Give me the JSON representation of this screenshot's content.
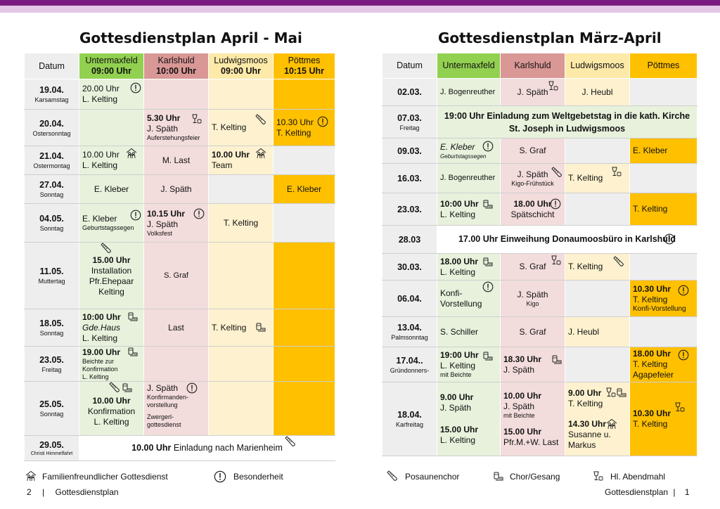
{
  "left": {
    "title": "Gottesdienstplan April - Mai",
    "headers": {
      "datum": "Datum",
      "c1": "Untermaxfeld",
      "c1t": "09:00 Uhr",
      "c2": "Karlshuld",
      "c2t": "10:00 Uhr",
      "c3": "Ludwigsmoos",
      "c3t": "09:00 Uhr",
      "c4": "Pöttmes",
      "c4t": "10:15 Uhr"
    },
    "rows": [
      {
        "date": "19.04.",
        "day": "Karsamstag",
        "c1a": "20.00 Uhr",
        "c1b": "L. Kelting"
      },
      {
        "date": "20.04.",
        "day": "Ostersonntag",
        "c2a": "5.30 Uhr",
        "c2b": "J. Späth",
        "c2c": "Auferstehungsfeier",
        "c3a": "T. Kelting",
        "c4a": "10.30 Uhr",
        "c4b": "T. Kelting"
      },
      {
        "date": "21.04.",
        "day": "Ostermontag",
        "c1a": "10.00 Uhr",
        "c1b": "L. Kelting",
        "c2a": "M. Last",
        "c3a": "10.00 Uhr",
        "c3b": "Team"
      },
      {
        "date": "27.04.",
        "day": "Sonntag",
        "c1a": "E. Kleber",
        "c2a": "J. Späth",
        "c4a": "E. Kleber"
      },
      {
        "date": "04.05.",
        "day": "Sonntag",
        "c1a": "E. Kleber",
        "c1b": "Geburtstagssegen",
        "c2a": "10.15 Uhr",
        "c2b": "J. Späth",
        "c2c": "Volksfest",
        "c3a": "T. Kelting"
      },
      {
        "date": "11.05.",
        "day": "Muttertag",
        "c1a": "15.00 Uhr",
        "c1b": "Installation",
        "c1c": "Pfr.Ehepaar",
        "c1d": "Kelting",
        "c2a": "S. Graf"
      },
      {
        "date": "18.05.",
        "day": "Sonntag",
        "c1a": "10:00 Uhr",
        "c1b": "Gde.Haus",
        "c1c": "L. Kelting",
        "c2a": "Last",
        "c3a": "T. Kelting"
      },
      {
        "date": "23.05.",
        "day": "Freitag",
        "c1a": "19.00 Uhr",
        "c1b": "Beichte zur",
        "c1c": "Konfirmation",
        "c1d": "L. Kelting"
      },
      {
        "date": "25.05.",
        "day": "Sonntag",
        "c1a": "10.00 Uhr",
        "c1b": "Konfirmation",
        "c1c": "L. Kelting",
        "c2a": "J. Späth",
        "c2b": "Konfirmanden-",
        "c2c": "vorstellung",
        "c2d": "Zwergerl-",
        "c2e": "gottesdienst"
      },
      {
        "date": "29.05.",
        "day": "Christi Himmelfahrt",
        "span_b": "10.00 Uhr",
        "span_t": " Einladung nach Marienheim"
      }
    ]
  },
  "right": {
    "title": "Gottesdienstplan März-April",
    "headers": {
      "datum": "Datum",
      "c1": "Untermaxfeld",
      "c2": "Karlshuld",
      "c3": "Ludwigsmoos",
      "c4": "Pöttmes"
    },
    "rows": [
      {
        "date": "02.03.",
        "c1a": "J. Bogenreuther",
        "c2a": "J. Späth",
        "c3a": "J. Heubl"
      },
      {
        "date": "07.03.",
        "day": "Freitag",
        "span1": "19:00 Uhr Einladung zum Weltgebetstag in die kath. Kirche",
        "span2": "St. Joseph in Ludwigsmoos"
      },
      {
        "date": "09.03.",
        "c1a": "E. Kleber",
        "c1b": "Geburtstagssegen",
        "c2a": "S. Graf",
        "c4a": "E. Kleber"
      },
      {
        "date": "16.03.",
        "c1a": "J. Bogenreuther",
        "c2a": "J. Späth",
        "c2b": "Kigo-Frühstück",
        "c3a": "T. Kelting"
      },
      {
        "date": "23.03.",
        "c1a": "10:00 Uhr",
        "c1b": "L. Kelting",
        "c2a": "18.00 Uhr",
        "c2b": "Spätschicht",
        "c4a": "T. Kelting"
      },
      {
        "date": "28.03",
        "span": "17.00 Uhr Einweihung Donaumoosbüro in Karlshuld"
      },
      {
        "date": "30.03.",
        "c1a": "18.00 Uhr",
        "c1b": "L. Kelting",
        "c2a": "S. Graf",
        "c3a": "T. Kelting"
      },
      {
        "date": "06.04.",
        "c1a": "Konfi-",
        "c1b": "Vorstellung",
        "c2a": "J. Späth",
        "c2b": "Kigo",
        "c4a": "10.30 Uhr",
        "c4b": "T. Kelting",
        "c4c": "Konfi-Vorstellung"
      },
      {
        "date": "13.04.",
        "day": "Palmsonntag",
        "c1a": "S. Schiller",
        "c2a": "S. Graf",
        "c3a": "J. Heubl"
      },
      {
        "date": "17.04..",
        "day": "Gründonners-",
        "c1a": "19:00 Uhr",
        "c1b": "L. Kelting",
        "c1c": "mit Beichte",
        "c2a": "18.30 Uhr",
        "c2b": "J. Späth",
        "c4a": "18.00 Uhr",
        "c4b": "T. Kelting",
        "c4c": "Agapefeier"
      },
      {
        "date": "18.04.",
        "day": "Karfreitag",
        "c1a": "9.00 Uhr",
        "c1b": "J. Späth",
        "c1c": "15.00 Uhr",
        "c1d": "L. Kelting",
        "c2a": "10.00 Uhr",
        "c2b": "J. Späth",
        "c2c": "mit Beichte",
        "c2d": "15.00 Uhr",
        "c2e": "Pfr.M.+W. Last",
        "c3a": "9.00 Uhr",
        "c3b": "T. Kelting",
        "c3c": "14.30 Uhr",
        "c3d": "Susanne u.",
        "c3e": "Markus",
        "c4a": "10.30 Uhr",
        "c4b": "T. Kelting"
      }
    ]
  },
  "legend": {
    "family": "Familienfreundlicher Gottesdienst",
    "special": "Besonderheit",
    "brass": "Posaunenchor",
    "choir": "Chor/Gesang",
    "communion": "Hl. Abendmahl"
  },
  "footer": {
    "left_num": "2",
    "left_sep": "|",
    "left_text": "Gottesdienstplan",
    "right_text": "Gottesdienstplan",
    "right_sep": "|",
    "right_num": "1"
  },
  "icons": [
    "info-icon",
    "choir-icon",
    "communion-icon",
    "brass-icon",
    "family-icon"
  ]
}
